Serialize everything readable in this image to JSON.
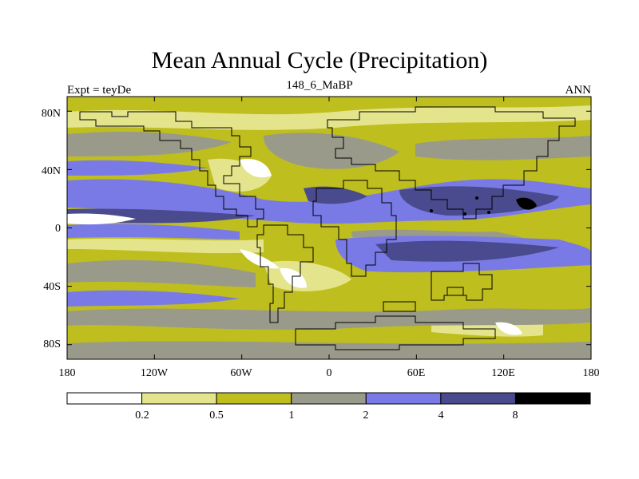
{
  "title": "Mean Annual Cycle (Precipitation)",
  "subtitle": "148_6_MaBP",
  "left_label": "Expt = teyDe",
  "right_label": "ANN",
  "lat_ticks": [
    {
      "value": 80,
      "label": "80N"
    },
    {
      "value": 40,
      "label": "40N"
    },
    {
      "value": 0,
      "label": "0"
    },
    {
      "value": -40,
      "label": "40S"
    },
    {
      "value": -80,
      "label": "80S"
    }
  ],
  "lon_ticks": [
    {
      "value": -180,
      "label": "180"
    },
    {
      "value": -120,
      "label": "120W"
    },
    {
      "value": -60,
      "label": "60W"
    },
    {
      "value": 0,
      "label": "0"
    },
    {
      "value": 60,
      "label": "60E"
    },
    {
      "value": 120,
      "label": "120E"
    },
    {
      "value": 180,
      "label": "180"
    }
  ],
  "colorbar": {
    "colors": [
      "#ffffff",
      "#e4e48c",
      "#bebe1e",
      "#9a9a8a",
      "#7a7ae6",
      "#4a4a8e",
      "#000000"
    ],
    "labels": [
      "0.2",
      "0.5",
      "1",
      "2",
      "4",
      "8"
    ]
  },
  "palette": {
    "white": "#ffffff",
    "pale_yellow": "#e4e48c",
    "olive": "#bebe1e",
    "grey": "#9a9a8a",
    "blue": "#7a7ae6",
    "dark_blue": "#4a4a8e",
    "black": "#000000"
  }
}
